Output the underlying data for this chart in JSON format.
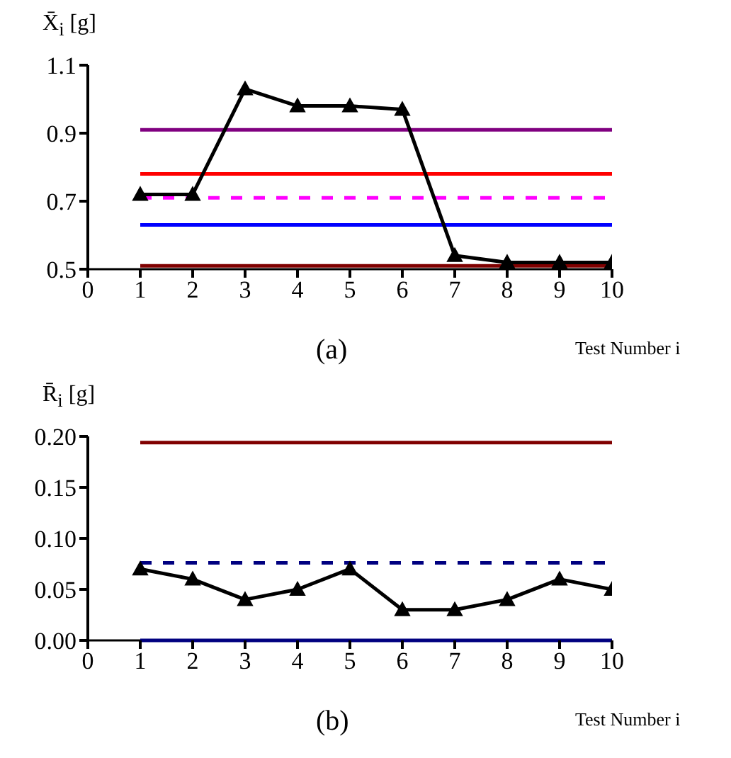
{
  "chart_data": [
    {
      "type": "line",
      "title": "(a)",
      "xlabel": "Test Number i",
      "ylabel": "X̄$_{i}$ [g]",
      "x": [
        1,
        2,
        3,
        4,
        5,
        6,
        7,
        8,
        9,
        10
      ],
      "xlim": [
        0,
        10
      ],
      "xticks": [
        0,
        1,
        2,
        3,
        4,
        5,
        6,
        7,
        8,
        9,
        10
      ],
      "ylim": [
        0.5,
        1.1
      ],
      "yticks": [
        0.5,
        0.7,
        0.9,
        1.1
      ],
      "marker": "triangle",
      "series": [
        {
          "type": "line",
          "color": "#000000",
          "values": [
            0.72,
            0.72,
            1.03,
            0.98,
            0.98,
            0.97,
            0.54,
            0.52,
            0.52,
            0.52
          ],
          "line_style": "solid"
        }
      ],
      "ref_lines": [
        {
          "axis": "y",
          "value": 0.91,
          "color": "#800080",
          "line_style": "solid"
        },
        {
          "axis": "y",
          "value": 0.78,
          "color": "#ff0000",
          "line_style": "solid"
        },
        {
          "axis": "y",
          "value": 0.71,
          "color": "#ff00ff",
          "line_style": "dashed"
        },
        {
          "axis": "y",
          "value": 0.63,
          "color": "#0000ff",
          "line_style": "solid"
        },
        {
          "axis": "y",
          "value": 0.51,
          "color": "#800000",
          "line_style": "solid"
        }
      ]
    },
    {
      "type": "line",
      "title": "(b)",
      "xlabel": "Test Number i",
      "ylabel": "R̄$_{i}$ [g]",
      "x": [
        1,
        2,
        3,
        4,
        5,
        6,
        7,
        8,
        9,
        10
      ],
      "xlim": [
        0,
        10
      ],
      "xticks": [
        0,
        1,
        2,
        3,
        4,
        5,
        6,
        7,
        8,
        9,
        10
      ],
      "ylim": [
        0,
        0.2
      ],
      "yticks": [
        {
          "value": 0,
          "label": "0.00"
        },
        {
          "value": 0.05,
          "label": "0.05"
        },
        {
          "value": 0.1,
          "label": "0.10"
        },
        {
          "value": 0.15,
          "label": "0.15"
        },
        {
          "value": 0.2,
          "label": "0.20"
        }
      ],
      "marker": "triangle",
      "series": [
        {
          "type": "line",
          "color": "#000000",
          "values": [
            0.07,
            0.06,
            0.04,
            0.05,
            0.07,
            0.03,
            0.03,
            0.04,
            0.06,
            0.05
          ],
          "line_style": "solid"
        }
      ],
      "ref_lines": [
        {
          "axis": "y",
          "value": 0.194,
          "color": "#800000",
          "line_style": "solid"
        },
        {
          "axis": "y",
          "value": 0.076,
          "color": "#000080",
          "line_style": "dashed"
        },
        {
          "axis": "y",
          "value": 0,
          "color": "#000080",
          "line_style": "solid"
        }
      ]
    }
  ]
}
